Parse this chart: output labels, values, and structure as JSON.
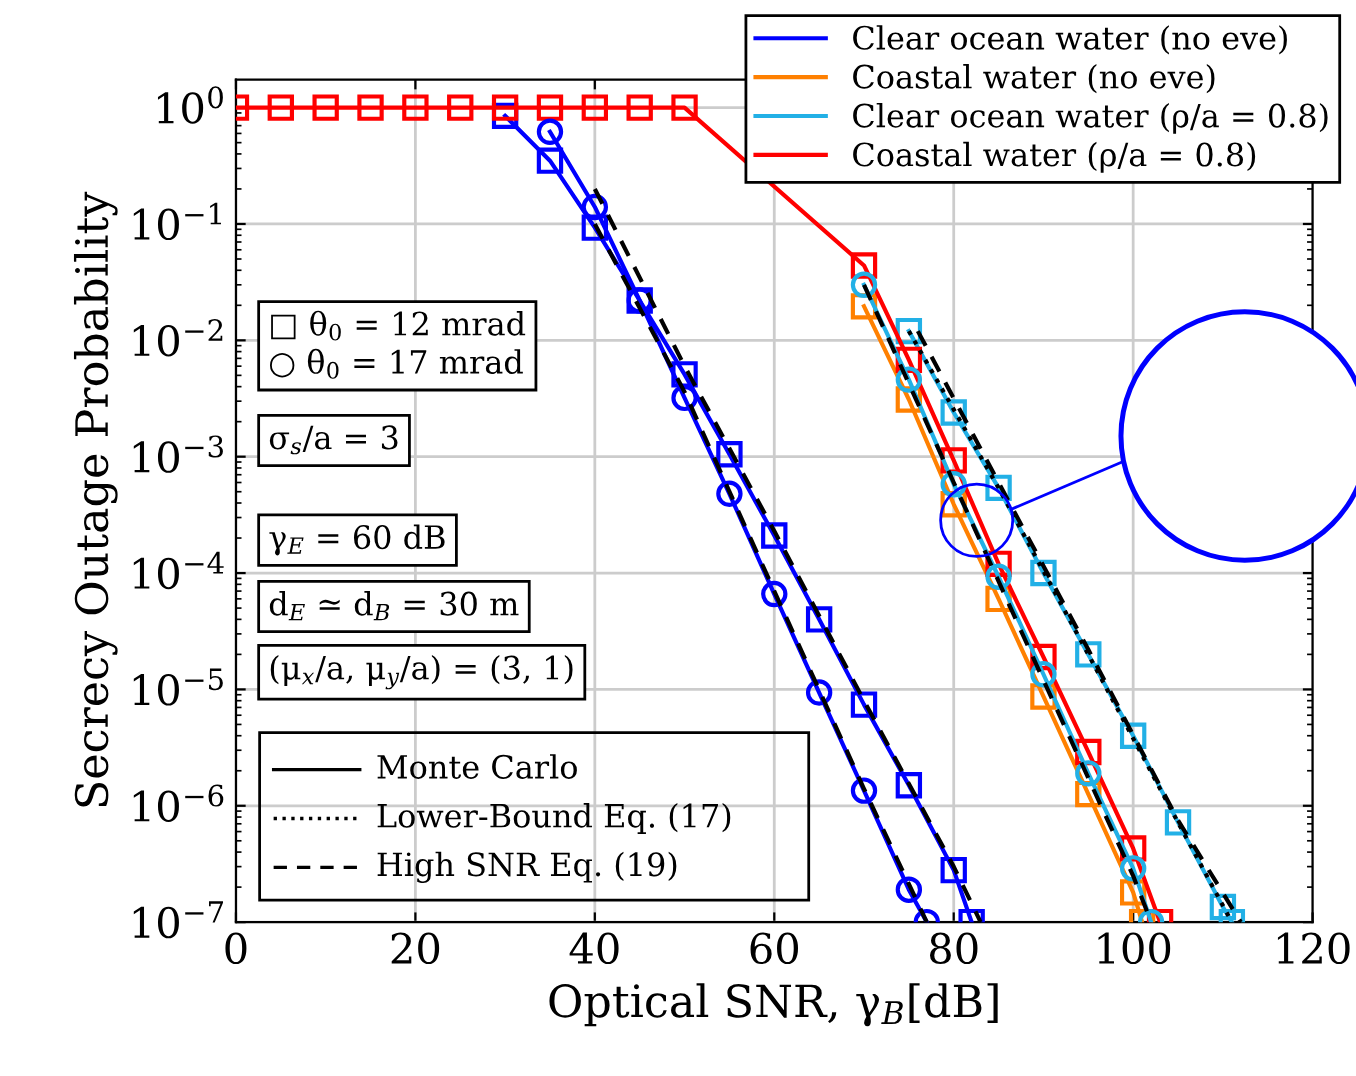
{
  "chart_data": {
    "type": "line",
    "xlabel": "Optical SNR, γ$_{B}$[dB]",
    "ylabel": "Secrecy Outage Probability",
    "xlim": [
      0,
      120
    ],
    "xticks": [
      0,
      20,
      40,
      60,
      80,
      100,
      120
    ],
    "ylim": [
      1e-07,
      1.74
    ],
    "log": "y",
    "yticks": [
      {
        "value": 1e-07,
        "label": "10$^{−7}$"
      },
      {
        "value": 1e-06,
        "label": "10$^{−6}$"
      },
      {
        "value": 1e-05,
        "label": "10$^{−5}$"
      },
      {
        "value": 0.0001,
        "label": "10$^{−4}$"
      },
      {
        "value": 0.001,
        "label": "10$^{−3}$"
      },
      {
        "value": 0.01,
        "label": "10$^{−2}$"
      },
      {
        "value": 0.1,
        "label": "10$^{−1}$"
      },
      {
        "value": 1,
        "label": "10$^{0}$"
      }
    ],
    "grid": true,
    "legend": "top right",
    "series": [
      {
        "name": "Clear ocean water (no eve)",
        "color": "#0000ff",
        "marker": "square",
        "line_style": "solid",
        "x": [
          30,
          35,
          40,
          45,
          50,
          55,
          60,
          65,
          70,
          75,
          80,
          82
        ],
        "values": [
          0.85,
          0.35,
          0.093,
          0.022,
          0.0051,
          0.00105,
          0.00021,
          4e-05,
          7.4e-06,
          1.5e-06,
          2.8e-07,
          1e-07
        ]
      },
      {
        "name": "Coastal water (no eve)",
        "color": "#ff8000",
        "marker": "square",
        "line_style": "solid",
        "x": [
          70,
          75,
          80,
          85,
          90,
          95,
          100,
          101
        ],
        "values": [
          0.0196,
          0.0031,
          0.00039,
          6e-05,
          8.7e-06,
          1.26e-06,
          1.8e-07,
          1e-07
        ]
      },
      {
        "name": "Clear ocean water (ρ/a = 0.8)",
        "color": "#22b0e6",
        "marker": "square",
        "line_style": "solid",
        "x": [
          75,
          80,
          85,
          90,
          95,
          100,
          105,
          110,
          111
        ],
        "values": [
          0.012,
          0.0024,
          0.00054,
          0.0001,
          2e-05,
          4e-06,
          7.2e-07,
          1.35e-07,
          1e-07
        ]
      },
      {
        "name": "Coastal water (ρ/a = 0.8)",
        "color": "#ff0000",
        "marker": "square",
        "line_style": "solid",
        "x": [
          0,
          5,
          10,
          15,
          20,
          25,
          30,
          35,
          40,
          45,
          50,
          70,
          75,
          80,
          85,
          90,
          95,
          100,
          103
        ],
        "values": [
          1,
          1,
          1,
          1,
          1,
          1,
          1,
          1,
          1,
          1,
          1,
          0.044,
          0.0068,
          0.00093,
          0.00012,
          1.9e-05,
          2.9e-06,
          4.3e-07,
          1e-07
        ]
      },
      {
        "color": "#0000ff",
        "marker": "circle",
        "line_style": "solid",
        "x": [
          35,
          40,
          45,
          50,
          55,
          60,
          65,
          70,
          75,
          77
        ],
        "values": [
          0.62,
          0.14,
          0.022,
          0.0032,
          0.00048,
          6.6e-05,
          9.4e-06,
          1.35e-06,
          1.9e-07,
          1e-07
        ]
      },
      {
        "color": "#22b0e6",
        "marker": "circle",
        "line_style": "solid",
        "x": [
          70,
          75,
          80,
          85,
          90,
          95,
          100,
          102
        ],
        "values": [
          0.03,
          0.0046,
          0.00058,
          9.3e-05,
          1.35e-05,
          1.9e-06,
          2.9e-07,
          1e-07
        ]
      },
      {
        "color": "#000000",
        "marker": "none",
        "line_style": "dashed",
        "x": [
          40,
          50,
          60,
          70,
          80,
          83
        ],
        "values": [
          0.2,
          0.006,
          0.00023,
          8e-06,
          3e-07,
          1e-07
        ]
      },
      {
        "color": "#000000",
        "marker": "none",
        "line_style": "dashed",
        "x": [
          40,
          50,
          60,
          70,
          77
        ],
        "values": [
          0.1,
          0.0036,
          7e-05,
          1.4e-06,
          1e-07
        ]
      },
      {
        "color": "#000000",
        "marker": "none",
        "line_style": "dashed",
        "x": [
          70,
          80,
          90,
          100,
          102
        ],
        "values": [
          0.03,
          0.0006,
          1.2e-05,
          2.5e-07,
          1e-07
        ]
      },
      {
        "color": "#000000",
        "marker": "none",
        "line_style": "dashed",
        "x": [
          76,
          85,
          95,
          105,
          112
        ],
        "values": [
          0.012,
          0.0006,
          2.2e-05,
          7.5e-07,
          1e-07
        ]
      },
      {
        "color": "#000000",
        "marker": "none",
        "line_style": "dotted",
        "x": [
          75,
          85,
          95,
          105,
          111
        ],
        "values": [
          0.012,
          0.00054,
          2e-05,
          7.2e-07,
          1e-07
        ]
      }
    ],
    "annotations": [
      "□ θ$_{0}$ = 12 mrad\n○ θ$_{0}$ = 17 mrad",
      "σ$_{s}$/a = 3",
      "γ$_{E}$ = 60 dB",
      "d$_{E}$ ≃ d$_{B}$ = 30 m",
      "(μ$_{x}$/a, μ$_{y}$/a) = (3, 1)",
      "Monte Carlo",
      "Lower-Bound Eq. (17)",
      "High SNR Eq. (19)"
    ]
  }
}
